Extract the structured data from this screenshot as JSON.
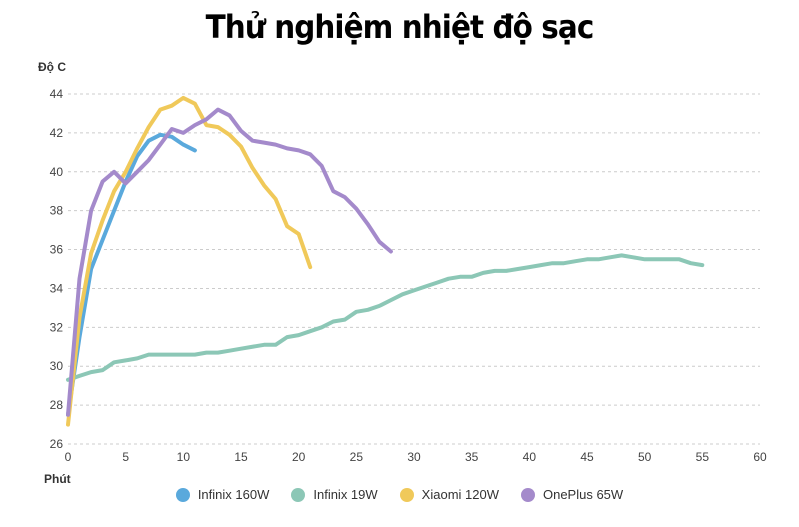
{
  "chart_data": {
    "type": "line",
    "title": "Thử nghiệm nhiệt độ sạc",
    "xlabel": "Phút",
    "ylabel": "Độ C",
    "xlim": [
      0,
      60
    ],
    "ylim": [
      26,
      44
    ],
    "xticks": [
      0,
      5,
      10,
      15,
      20,
      25,
      30,
      35,
      40,
      45,
      50,
      55,
      60
    ],
    "yticks": [
      26,
      28,
      30,
      32,
      34,
      36,
      38,
      40,
      42,
      44
    ],
    "grid": "horizontal dashed",
    "legend_position": "bottom",
    "series": [
      {
        "name": "Infinix 160W",
        "color": "#5aa9dc",
        "points": [
          [
            0,
            27.5
          ],
          [
            1,
            31.5
          ],
          [
            2,
            35
          ],
          [
            3,
            36.5
          ],
          [
            4,
            38
          ],
          [
            5,
            39.5
          ],
          [
            6,
            40.8
          ],
          [
            7,
            41.6
          ],
          [
            8,
            41.9
          ],
          [
            9,
            41.8
          ],
          [
            10,
            41.4
          ],
          [
            11,
            41.1
          ]
        ]
      },
      {
        "name": "Infinix 19W",
        "color": "#8cc7b6",
        "points": [
          [
            0,
            29.3
          ],
          [
            1,
            29.5
          ],
          [
            2,
            29.7
          ],
          [
            3,
            29.8
          ],
          [
            4,
            30.2
          ],
          [
            5,
            30.3
          ],
          [
            6,
            30.4
          ],
          [
            7,
            30.6
          ],
          [
            8,
            30.6
          ],
          [
            10,
            30.6
          ],
          [
            11,
            30.6
          ],
          [
            12,
            30.7
          ],
          [
            13,
            30.7
          ],
          [
            14,
            30.8
          ],
          [
            15,
            30.9
          ],
          [
            17,
            31.1
          ],
          [
            18,
            31.1
          ],
          [
            19,
            31.5
          ],
          [
            20,
            31.6
          ],
          [
            21,
            31.8
          ],
          [
            22,
            32.0
          ],
          [
            23,
            32.3
          ],
          [
            24,
            32.4
          ],
          [
            25,
            32.8
          ],
          [
            26,
            32.9
          ],
          [
            27,
            33.1
          ],
          [
            28,
            33.4
          ],
          [
            29,
            33.7
          ],
          [
            30,
            33.9
          ],
          [
            31,
            34.1
          ],
          [
            32,
            34.3
          ],
          [
            33,
            34.5
          ],
          [
            34,
            34.6
          ],
          [
            35,
            34.6
          ],
          [
            36,
            34.8
          ],
          [
            37,
            34.9
          ],
          [
            38,
            34.9
          ],
          [
            39,
            35.0
          ],
          [
            40,
            35.1
          ],
          [
            41,
            35.2
          ],
          [
            42,
            35.3
          ],
          [
            43,
            35.3
          ],
          [
            44,
            35.4
          ],
          [
            45,
            35.5
          ],
          [
            46,
            35.5
          ],
          [
            47,
            35.6
          ],
          [
            48,
            35.7
          ],
          [
            49,
            35.6
          ],
          [
            50,
            35.5
          ],
          [
            52,
            35.5
          ],
          [
            53,
            35.5
          ],
          [
            54,
            35.3
          ],
          [
            55,
            35.2
          ]
        ]
      },
      {
        "name": "Xiaomi 120W",
        "color": "#f0c95a",
        "points": [
          [
            0,
            27.0
          ],
          [
            1,
            32.5
          ],
          [
            2,
            35.8
          ],
          [
            3,
            37.5
          ],
          [
            4,
            39.0
          ],
          [
            5,
            40.0
          ],
          [
            6,
            41.2
          ],
          [
            7,
            42.3
          ],
          [
            8,
            43.2
          ],
          [
            9,
            43.4
          ],
          [
            10,
            43.8
          ],
          [
            11,
            43.5
          ],
          [
            12,
            42.4
          ],
          [
            13,
            42.3
          ],
          [
            14,
            41.9
          ],
          [
            15,
            41.3
          ],
          [
            16,
            40.2
          ],
          [
            17,
            39.3
          ],
          [
            18,
            38.6
          ],
          [
            19,
            37.2
          ],
          [
            20,
            36.8
          ],
          [
            21,
            35.1
          ]
        ]
      },
      {
        "name": "OnePlus 65W",
        "color": "#a48acb",
        "points": [
          [
            0,
            27.5
          ],
          [
            1,
            34.5
          ],
          [
            2,
            38.0
          ],
          [
            3,
            39.5
          ],
          [
            4,
            40.0
          ],
          [
            5,
            39.4
          ],
          [
            6,
            40.0
          ],
          [
            7,
            40.6
          ],
          [
            8,
            41.4
          ],
          [
            9,
            42.2
          ],
          [
            10,
            42.0
          ],
          [
            11,
            42.4
          ],
          [
            12,
            42.7
          ],
          [
            13,
            43.2
          ],
          [
            14,
            42.9
          ],
          [
            15,
            42.1
          ],
          [
            16,
            41.6
          ],
          [
            17,
            41.5
          ],
          [
            18,
            41.4
          ],
          [
            19,
            41.2
          ],
          [
            20,
            41.1
          ],
          [
            21,
            40.9
          ],
          [
            22,
            40.3
          ],
          [
            23,
            39.0
          ],
          [
            24,
            38.7
          ],
          [
            25,
            38.1
          ],
          [
            26,
            37.3
          ],
          [
            27,
            36.4
          ],
          [
            28,
            35.9
          ]
        ]
      }
    ]
  }
}
